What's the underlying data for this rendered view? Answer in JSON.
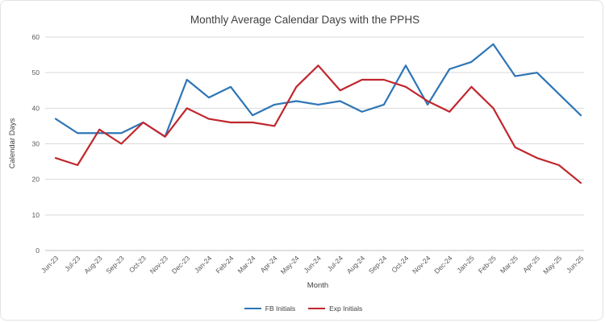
{
  "chart_data": {
    "type": "line",
    "title": "Monthly Average Calendar Days with the PPHS",
    "xlabel": "Month",
    "ylabel": "Calendar Days",
    "ylim": [
      0,
      60
    ],
    "ytick_step": 10,
    "grid": true,
    "legend_position": "bottom",
    "categories": [
      "Jun-23",
      "Jul-23",
      "Aug-23",
      "Sep-23",
      "Oct-23",
      "Nov-23",
      "Dec-23",
      "Jan-24",
      "Feb-24",
      "Mar-24",
      "Apr-24",
      "May-24",
      "Jun-24",
      "Jul-24",
      "Aug-24",
      "Sep-24",
      "Oct-24",
      "Nov-24",
      "Dec-24",
      "Jan-25",
      "Feb-25",
      "Mar-25",
      "Apr-25",
      "May-25",
      "Jun-25"
    ],
    "series": [
      {
        "name": "FB Initials",
        "color": "#2E75B6",
        "values": [
          37,
          33,
          33,
          33,
          36,
          32,
          48,
          43,
          46,
          38,
          41,
          42,
          41,
          42,
          39,
          41,
          52,
          41,
          51,
          53,
          58,
          49,
          50,
          44,
          38
        ]
      },
      {
        "name": "Exp Initials",
        "color": "#C0272D",
        "values": [
          26,
          24,
          34,
          30,
          36,
          32,
          40,
          37,
          36,
          36,
          35,
          46,
          52,
          45,
          48,
          48,
          46,
          42,
          39,
          46,
          40,
          29,
          26,
          24,
          19
        ]
      }
    ],
    "colors": {
      "title_text": "#404040",
      "axis_text": "#595959",
      "gridline": "#d9d9d9",
      "baseline": "#bfbfbf"
    }
  }
}
